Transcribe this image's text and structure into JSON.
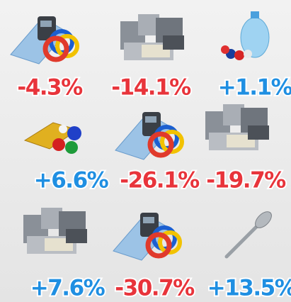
{
  "items": [
    "-4.3%",
    "-14.1%",
    "+1.1%",
    "+6.6%",
    "-26.1%",
    "-19.7%",
    "+7.6%",
    "-30.7%",
    "+13.5%"
  ]
}
